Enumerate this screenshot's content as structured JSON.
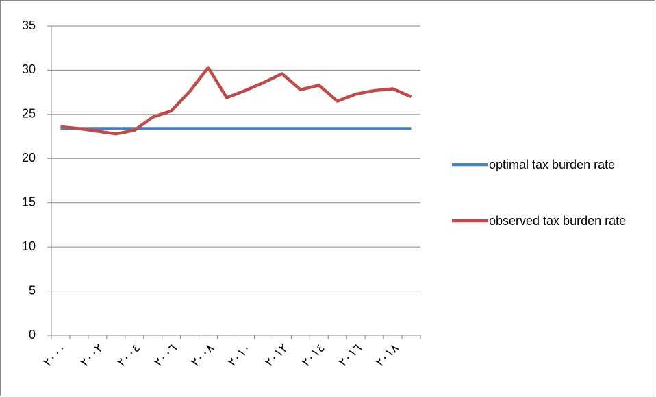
{
  "chart_data": {
    "type": "line",
    "categories": [
      "٢٠٠٠",
      null,
      "٢٠٠٢",
      null,
      "٢٠٠٤",
      null,
      "٢٠٠٦",
      null,
      "٢٠٠٨",
      null,
      "٢٠١٠",
      null,
      "٢٠١٢",
      null,
      "٢٠١٤",
      null,
      "٢٠١٦",
      null,
      "٢٠١٨",
      null
    ],
    "series": [
      {
        "name": "optimal tax burden rate",
        "color": "#4a7ebb",
        "values": [
          23.4,
          23.4,
          23.4,
          23.4,
          23.4,
          23.4,
          23.4,
          23.4,
          23.4,
          23.4,
          23.4,
          23.4,
          23.4,
          23.4,
          23.4,
          23.4,
          23.4,
          23.4,
          23.4,
          23.4
        ]
      },
      {
        "name": "observed tax burden rate",
        "color": "#be4b48",
        "values": [
          23.6,
          23.4,
          23.1,
          22.8,
          23.2,
          24.7,
          25.4,
          27.6,
          30.3,
          26.9,
          27.7,
          28.6,
          29.6,
          27.8,
          28.3,
          26.5,
          27.3,
          27.7,
          27.9,
          27.0
        ]
      }
    ],
    "ylim": [
      0,
      35
    ],
    "yticks": [
      0,
      5,
      10,
      15,
      20,
      25,
      30,
      35
    ],
    "grid": true,
    "legend": "right"
  }
}
